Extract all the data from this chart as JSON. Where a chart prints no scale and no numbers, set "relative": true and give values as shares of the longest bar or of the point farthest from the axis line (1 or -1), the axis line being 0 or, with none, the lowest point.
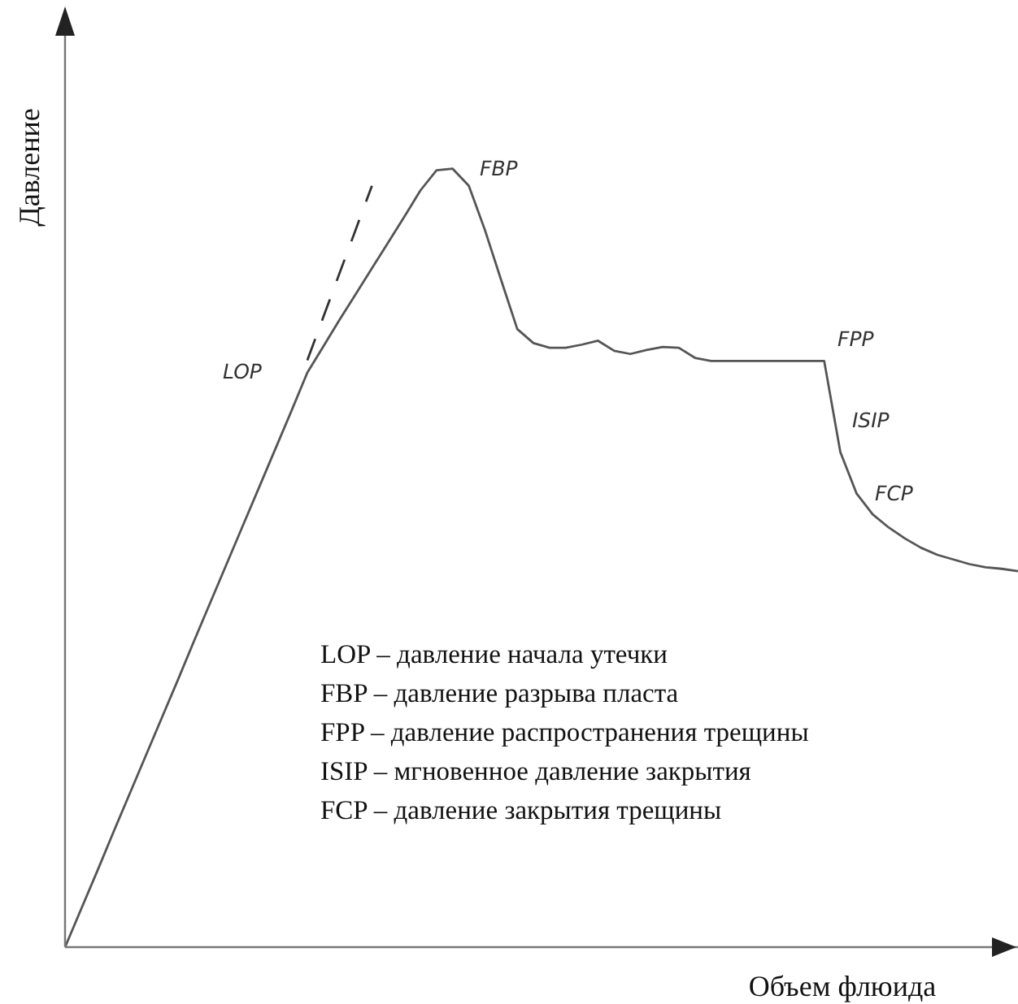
{
  "chart_data": {
    "type": "line",
    "relative": true,
    "xlabel": "Объем флюида",
    "ylabel": "Давление",
    "categories": [
      null,
      null,
      null,
      null,
      null,
      null,
      null,
      null,
      null,
      null,
      null,
      null,
      null,
      null,
      null,
      null,
      null,
      null,
      null,
      null,
      null,
      null,
      null,
      null,
      null,
      null,
      null,
      null,
      null,
      null,
      null,
      null,
      null,
      null,
      null,
      null,
      null,
      null,
      null,
      null,
      null,
      null,
      null,
      null,
      null,
      null,
      null,
      null,
      null,
      null,
      null,
      null,
      null,
      null,
      null,
      null,
      null,
      null,
      null,
      null
    ],
    "series": [
      {
        "color": "#555555",
        "values": [
          0,
          0.049,
          0.098,
          0.148,
          0.197,
          0.246,
          0.295,
          0.344,
          0.394,
          0.443,
          0.492,
          0.541,
          0.59,
          0.639,
          0.688,
          0.738,
          0.772,
          0.806,
          0.839,
          0.872,
          0.905,
          0.938,
          0.972,
          0.998,
          1,
          0.978,
          0.921,
          0.857,
          0.794,
          0.776,
          0.77,
          0.77,
          0.774,
          0.779,
          0.766,
          0.762,
          0.767,
          0.771,
          0.77,
          0.757,
          0.753,
          0.753,
          0.753,
          0.753,
          0.753,
          0.753,
          0.753,
          0.753,
          0.636,
          0.583,
          0.556,
          0.539,
          0.525,
          0.513,
          0.504,
          0.498,
          0.492,
          0.488,
          0.486,
          0.483
        ]
      },
      {
        "type": "line",
        "line_style": "dashed",
        "color": "#333333",
        "values": [
          null,
          null,
          null,
          null,
          null,
          null,
          null,
          null,
          null,
          null,
          null,
          null,
          null,
          null,
          null,
          0.754,
          0.81,
          0.866,
          0.922,
          0.978,
          null,
          null,
          null,
          null,
          null,
          null,
          null,
          null,
          null,
          null,
          null,
          null,
          null,
          null,
          null,
          null,
          null,
          null,
          null,
          null,
          null,
          null,
          null,
          null,
          null,
          null,
          null,
          null,
          null,
          null,
          null,
          null,
          null,
          null,
          null,
          null,
          null,
          null,
          null,
          null
        ]
      }
    ],
    "annotations": [
      "LOP",
      "FBP",
      "FPP",
      "ISIP",
      "FCP",
      "LOP – давление начала утечки",
      "FBP – давление разрыва пласта",
      "FPP – давление распространения трещины",
      "ISIP – мгновенное давление закрытия",
      "FCP – давление закрытия трещины"
    ]
  }
}
